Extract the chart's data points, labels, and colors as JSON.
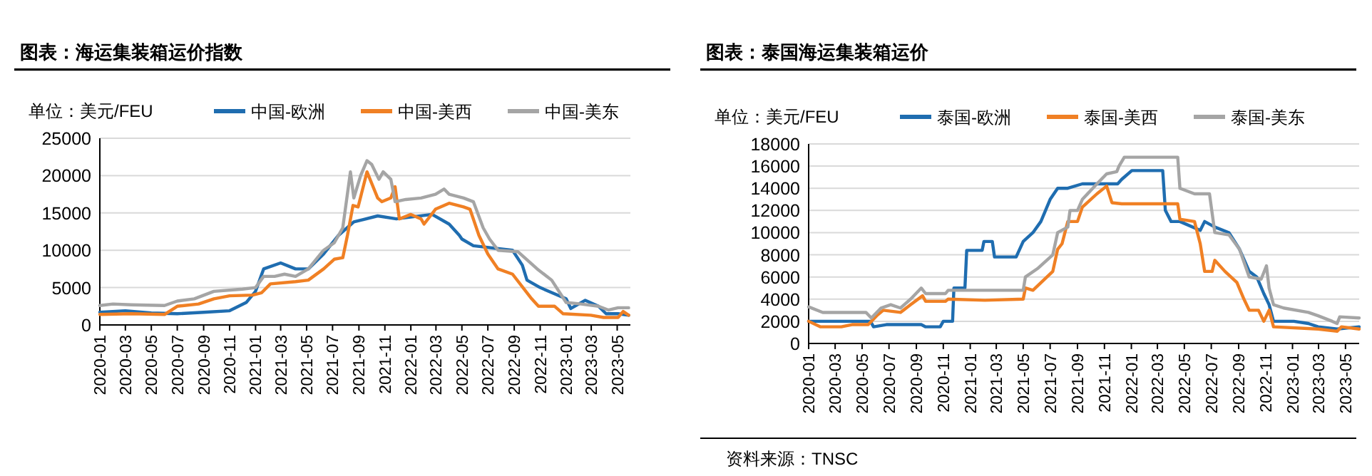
{
  "chart_data": [
    {
      "type": "line",
      "title": "图表：海运集装箱运价指数",
      "annotations": [
        "单位：美元/FEU"
      ],
      "xlim": [
        "2020-01",
        "2023-06"
      ],
      "xticks": [
        "2020-01",
        "2020-03",
        "2020-05",
        "2020-07",
        "2020-09",
        "2020-11",
        "2021-01",
        "2021-03",
        "2021-05",
        "2021-07",
        "2021-09",
        "2021-11",
        "2022-01",
        "2022-03",
        "2022-05",
        "2022-07",
        "2022-09",
        "2022-11",
        "2023-01",
        "2023-03",
        "2023-05"
      ],
      "ylim": [
        0,
        25000
      ],
      "yticks": [
        0,
        5000,
        10000,
        15000,
        20000,
        25000
      ],
      "grid": "y",
      "legend": "top",
      "line_style": "solid",
      "marker": "none",
      "series": [
        {
          "name": "中国-欧洲",
          "color": "#1f6db0",
          "x": [
            "2020-01-01",
            "2020-03-01",
            "2020-05-01",
            "2020-07-01",
            "2020-09-01",
            "2020-11-01",
            "2020-12-10",
            "2021-01-01",
            "2021-01-20",
            "2021-03-01",
            "2021-04-05",
            "2021-05-05",
            "2021-06-10",
            "2021-07-15",
            "2021-08-20",
            "2021-10-15",
            "2021-11-28",
            "2022-02-20",
            "2022-04-01",
            "2022-04-25",
            "2022-05-01",
            "2022-05-28",
            "2022-08-28",
            "2022-09-20",
            "2022-10-01",
            "2022-11-01",
            "2023-01-01",
            "2023-01-12",
            "2023-02-15",
            "2023-03-18",
            "2023-04-05",
            "2023-05-03",
            "2023-05-28"
          ],
          "values": [
            1700,
            1900,
            1600,
            1500,
            1700,
            1900,
            3000,
            4500,
            7500,
            8300,
            7500,
            7500,
            9500,
            12000,
            13800,
            14600,
            14200,
            14800,
            13500,
            12000,
            11500,
            10600,
            10000,
            8000,
            6000,
            5000,
            3500,
            2200,
            3300,
            2500,
            1500,
            1500,
            1300
          ]
        },
        {
          "name": "中国-美西",
          "color": "#f08024",
          "x": [
            "2020-01-01",
            "2020-03-15",
            "2020-06-01",
            "2020-07-01",
            "2020-08-20",
            "2020-09-25",
            "2020-11-01",
            "2020-12-25",
            "2021-01-15",
            "2021-02-05",
            "2021-04-05",
            "2021-05-05",
            "2021-06-10",
            "2021-07-05",
            "2021-07-25",
            "2021-08-05",
            "2021-08-18",
            "2021-08-30",
            "2021-09-20",
            "2021-10-15",
            "2021-10-25",
            "2021-11-15",
            "2021-11-25",
            "2021-12-05",
            "2022-01-01",
            "2022-01-25",
            "2022-02-01",
            "2022-02-28",
            "2022-04-01",
            "2022-05-05",
            "2022-05-20",
            "2022-06-10",
            "2022-07-01",
            "2022-07-25",
            "2022-08-28",
            "2022-10-12",
            "2022-10-28",
            "2022-12-05",
            "2022-12-25",
            "2023-02-28",
            "2023-03-30",
            "2023-05-03",
            "2023-05-15",
            "2023-05-28"
          ],
          "values": [
            1400,
            1500,
            1400,
            2500,
            2800,
            3500,
            3900,
            4000,
            4300,
            5500,
            5800,
            6000,
            7500,
            8800,
            9000,
            12000,
            16000,
            15800,
            20500,
            17000,
            16500,
            17000,
            18500,
            14200,
            14800,
            14200,
            13500,
            15500,
            16300,
            15800,
            15500,
            12000,
            9500,
            7500,
            6800,
            3500,
            2500,
            2500,
            1500,
            1300,
            1000,
            1000,
            1800,
            1300
          ]
        },
        {
          "name": "中国-美东",
          "color": "#a5a5a5",
          "x": [
            "2020-01-01",
            "2020-02-01",
            "2020-03-15",
            "2020-06-01",
            "2020-07-01",
            "2020-08-10",
            "2020-09-25",
            "2020-12-01",
            "2021-01-01",
            "2021-01-20",
            "2021-02-15",
            "2021-03-10",
            "2021-04-05",
            "2021-05-05",
            "2021-06-10",
            "2021-07-05",
            "2021-07-25",
            "2021-08-12",
            "2021-08-20",
            "2021-09-05",
            "2021-09-20",
            "2021-10-01",
            "2021-10-18",
            "2021-10-28",
            "2021-11-15",
            "2021-11-25",
            "2021-12-20",
            "2022-01-25",
            "2022-02-28",
            "2022-03-20",
            "2022-04-01",
            "2022-05-05",
            "2022-05-28",
            "2022-06-20",
            "2022-07-05",
            "2022-07-25",
            "2022-09-10",
            "2022-10-25",
            "2022-11-28",
            "2023-01-01",
            "2023-02-05",
            "2023-03-18",
            "2023-04-10",
            "2023-05-03",
            "2023-05-28"
          ],
          "values": [
            2600,
            2800,
            2700,
            2600,
            3200,
            3500,
            4500,
            4800,
            5000,
            6500,
            6500,
            6800,
            6500,
            7500,
            10000,
            11000,
            13000,
            20500,
            17000,
            20000,
            22000,
            21500,
            19500,
            20500,
            19500,
            16500,
            16800,
            17000,
            17500,
            18200,
            17500,
            17000,
            16500,
            13000,
            11500,
            10000,
            9800,
            7500,
            6000,
            3000,
            2800,
            2500,
            2000,
            2300,
            2300
          ]
        }
      ]
    },
    {
      "type": "line",
      "title": "图表：泰国海运集装箱运价",
      "annotations": [
        "单位：美元/FEU",
        "资料来源：TNSC"
      ],
      "xlim": [
        "2020-01",
        "2023-06"
      ],
      "xticks": [
        "2020-01",
        "2020-03",
        "2020-05",
        "2020-07",
        "2020-09",
        "2020-11",
        "2021-01",
        "2021-03",
        "2021-05",
        "2021-07",
        "2021-09",
        "2021-11",
        "2022-01",
        "2022-03",
        "2022-05",
        "2022-07",
        "2022-09",
        "2022-11",
        "2023-01",
        "2023-03",
        "2023-05"
      ],
      "ylim": [
        0,
        18000
      ],
      "yticks": [
        0,
        2000,
        4000,
        6000,
        8000,
        10000,
        12000,
        14000,
        16000,
        18000
      ],
      "grid": "y",
      "legend": "top",
      "line_style": "solid",
      "marker": "none",
      "series": [
        {
          "name": "泰国-欧洲",
          "color": "#1f6db0",
          "x": [
            "2020-01-01",
            "2020-05-20",
            "2020-05-27",
            "2020-06-25",
            "2020-09-12",
            "2020-09-22",
            "2020-10-25",
            "2020-11-01",
            "2020-11-22",
            "2020-11-25",
            "2020-12-20",
            "2020-12-24",
            "2021-01-28",
            "2021-02-01",
            "2021-02-20",
            "2021-02-25",
            "2021-04-15",
            "2021-05-01",
            "2021-05-23",
            "2021-06-10",
            "2021-07-01",
            "2021-07-18",
            "2021-08-10",
            "2021-09-12",
            "2021-12-01",
            "2021-12-10",
            "2022-01-02",
            "2022-03-13",
            "2022-03-19",
            "2022-04-01",
            "2022-04-21",
            "2022-06-06",
            "2022-06-16",
            "2022-07-09",
            "2022-08-10",
            "2022-09-03",
            "2022-09-25",
            "2022-10-12",
            "2022-10-28",
            "2022-11-09",
            "2022-11-19",
            "2023-01-04",
            "2023-02-06",
            "2023-02-28",
            "2023-04-12",
            "2023-06-01"
          ],
          "values": [
            2000,
            2000,
            1500,
            1700,
            1700,
            1500,
            1500,
            2000,
            2000,
            5000,
            5000,
            8400,
            8400,
            9200,
            9200,
            7800,
            7800,
            9200,
            10000,
            11000,
            13000,
            14000,
            14000,
            14400,
            14400,
            14800,
            15600,
            15600,
            12000,
            11000,
            11000,
            10200,
            11000,
            10500,
            10000,
            8500,
            6500,
            6000,
            4500,
            3500,
            2000,
            2000,
            1800,
            1500,
            1300,
            1500
          ]
        },
        {
          "name": "泰国-美西",
          "color": "#f08024",
          "x": [
            "2020-01-01",
            "2020-01-28",
            "2020-03-15",
            "2020-04-08",
            "2020-05-15",
            "2020-06-03",
            "2020-06-18",
            "2020-07-27",
            "2020-08-19",
            "2020-09-15",
            "2020-09-22",
            "2020-11-06",
            "2020-11-12",
            "2021-02-03",
            "2021-05-01",
            "2021-05-06",
            "2021-05-23",
            "2021-07-07",
            "2021-07-18",
            "2021-07-28",
            "2021-08-10",
            "2021-09-01",
            "2021-09-12",
            "2021-10-15",
            "2021-11-06",
            "2021-11-18",
            "2021-12-10",
            "2022-04-16",
            "2022-04-21",
            "2022-05-24",
            "2022-06-06",
            "2022-06-16",
            "2022-07-03",
            "2022-07-09",
            "2022-08-01",
            "2022-08-28",
            "2022-09-13",
            "2022-09-25",
            "2022-10-16",
            "2022-10-28",
            "2022-11-09",
            "2022-11-19",
            "2023-02-28",
            "2023-04-12",
            "2023-04-22",
            "2023-06-01"
          ],
          "values": [
            2000,
            1500,
            1500,
            1700,
            1700,
            2500,
            3000,
            2800,
            3500,
            4300,
            3800,
            3800,
            4000,
            3900,
            4000,
            5000,
            4800,
            6500,
            8500,
            9000,
            11000,
            11000,
            12300,
            13500,
            14200,
            12700,
            12600,
            12600,
            11200,
            11000,
            9000,
            6500,
            6500,
            7500,
            6500,
            5500,
            4000,
            3000,
            3000,
            2000,
            3000,
            1500,
            1300,
            1100,
            1500,
            1300
          ]
        },
        {
          "name": "泰国-美东",
          "color": "#a5a5a5",
          "x": [
            "2020-01-01",
            "2020-02-02",
            "2020-05-10",
            "2020-05-22",
            "2020-06-13",
            "2020-07-05",
            "2020-07-27",
            "2020-08-19",
            "2020-09-12",
            "2020-09-22",
            "2020-11-06",
            "2020-11-12",
            "2021-05-01",
            "2021-05-06",
            "2021-06-04",
            "2021-07-07",
            "2021-07-18",
            "2021-08-10",
            "2021-08-15",
            "2021-09-01",
            "2021-09-12",
            "2021-10-15",
            "2021-11-06",
            "2021-11-29",
            "2021-12-04",
            "2021-12-16",
            "2022-04-16",
            "2022-04-21",
            "2022-05-24",
            "2022-06-27",
            "2022-07-09",
            "2022-08-10",
            "2022-09-03",
            "2022-09-25",
            "2022-10-22",
            "2022-11-03",
            "2022-11-09",
            "2022-11-19",
            "2022-12-12",
            "2023-02-06",
            "2023-02-28",
            "2023-04-01",
            "2023-04-12",
            "2023-04-18",
            "2023-06-01"
          ],
          "values": [
            3300,
            2800,
            2800,
            2300,
            3200,
            3500,
            3200,
            4000,
            5000,
            4500,
            4500,
            4800,
            4800,
            6000,
            6800,
            8000,
            10000,
            10500,
            12000,
            12000,
            13000,
            14400,
            15300,
            15500,
            16000,
            16800,
            16800,
            14000,
            13500,
            13500,
            10000,
            9800,
            8500,
            6000,
            5800,
            7000,
            5000,
            3500,
            3200,
            2800,
            2500,
            2000,
            1800,
            2400,
            2300
          ]
        }
      ]
    }
  ]
}
